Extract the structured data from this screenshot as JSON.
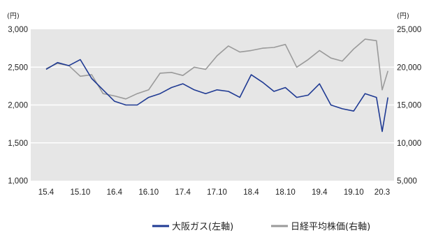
{
  "chart_data": {
    "type": "line",
    "title": "",
    "left_unit": "(円)",
    "right_unit": "(円)",
    "x_ticks": [
      "15.4",
      "15.10",
      "16.4",
      "16.10",
      "17.4",
      "17.10",
      "18.4",
      "18.10",
      "19.4",
      "19.10",
      "20.3"
    ],
    "y_left": {
      "lim": [
        1000,
        3000
      ],
      "ticks": [
        "3,000",
        "2,500",
        "2,000",
        "1,500",
        "1,000"
      ]
    },
    "y_right": {
      "lim": [
        5000,
        25000
      ],
      "ticks": [
        "25,000",
        "20,000",
        "15,000",
        "10,000",
        "5,000"
      ]
    },
    "grid": true,
    "legend_position": "bottom-right",
    "series": [
      {
        "name": "大阪ガス(左軸)",
        "axis": "left",
        "color": "#1f3a93",
        "x": [
          "15.4",
          "15.6",
          "15.8",
          "15.10",
          "15.12",
          "16.2",
          "16.4",
          "16.6",
          "16.8",
          "16.10",
          "16.12",
          "17.2",
          "17.4",
          "17.6",
          "17.8",
          "17.10",
          "17.12",
          "18.2",
          "18.4",
          "18.6",
          "18.8",
          "18.10",
          "18.12",
          "19.2",
          "19.4",
          "19.6",
          "19.8",
          "19.10",
          "19.12",
          "20.2",
          "20.3",
          "20.4"
        ],
        "values": [
          2470,
          2560,
          2520,
          2600,
          2350,
          2200,
          2050,
          2000,
          2000,
          2100,
          2150,
          2230,
          2280,
          2200,
          2150,
          2200,
          2180,
          2100,
          2400,
          2300,
          2180,
          2230,
          2100,
          2130,
          2280,
          2000,
          1950,
          1920,
          2150,
          2100,
          1650,
          2100
        ]
      },
      {
        "name": "日経平均株価(右軸)",
        "axis": "right",
        "color": "#9a9a9a",
        "x": [
          "15.4",
          "15.6",
          "15.8",
          "15.10",
          "15.12",
          "16.2",
          "16.4",
          "16.6",
          "16.8",
          "16.10",
          "16.12",
          "17.2",
          "17.4",
          "17.6",
          "17.8",
          "17.10",
          "17.12",
          "18.2",
          "18.4",
          "18.6",
          "18.8",
          "18.10",
          "18.12",
          "19.2",
          "19.4",
          "19.6",
          "19.8",
          "19.10",
          "19.12",
          "20.2",
          "20.3",
          "20.4"
        ],
        "values": [
          19800,
          20500,
          20200,
          18800,
          19000,
          16500,
          16200,
          15800,
          16500,
          17000,
          19200,
          19300,
          18900,
          20000,
          19700,
          21500,
          22800,
          22000,
          22200,
          22500,
          22600,
          23000,
          20000,
          21000,
          22200,
          21200,
          20800,
          22400,
          23700,
          23500,
          17000,
          19500
        ]
      }
    ]
  }
}
